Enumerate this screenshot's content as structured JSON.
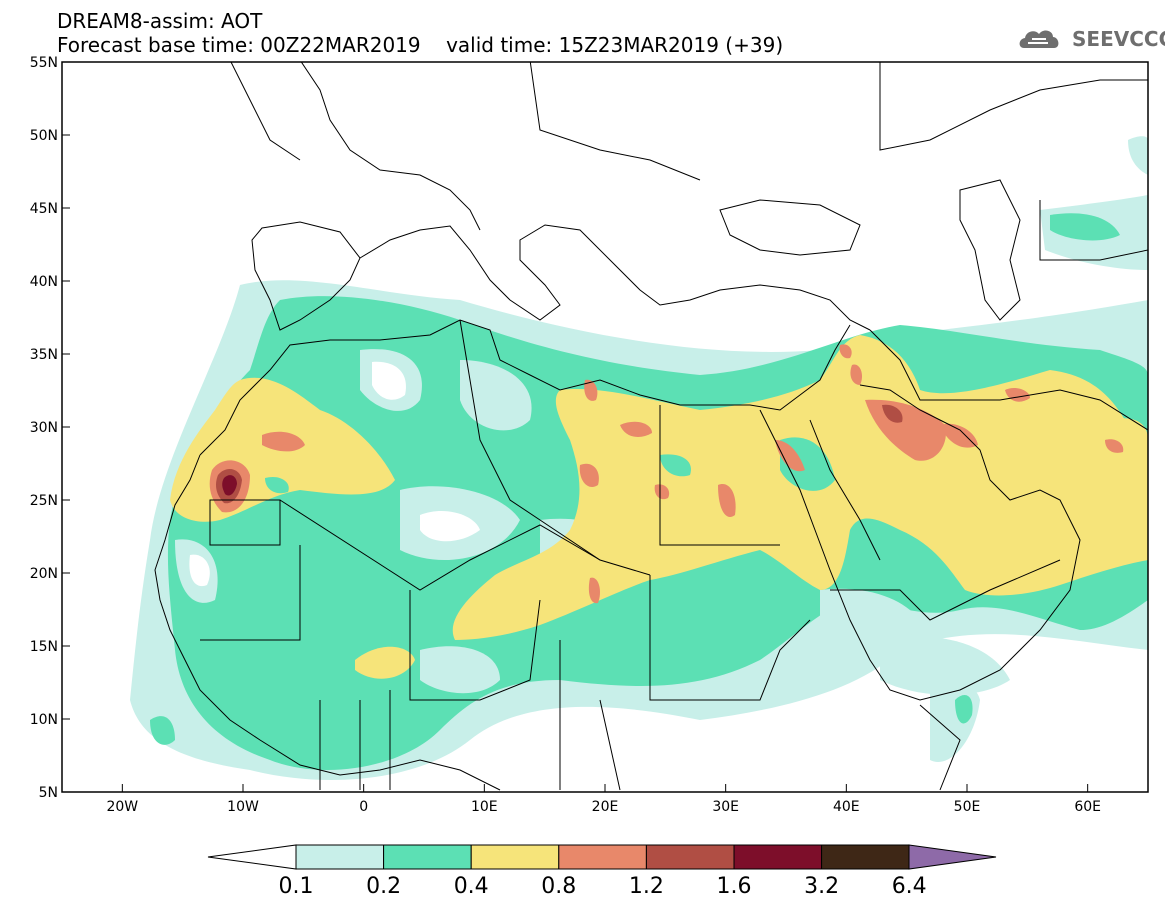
{
  "title": {
    "line1": "DREAM8-assim: AOT",
    "base_time": "Forecast base time: 00Z22MAR2019",
    "valid_time": "valid time: 15Z23MAR2019 (+39)"
  },
  "logo": {
    "text": "SEEVCCC",
    "icon": "cloud-icon"
  },
  "map": {
    "lon_range": [
      -25,
      65
    ],
    "lat_range": [
      5,
      55
    ],
    "lat_ticks": [
      "55N",
      "50N",
      "45N",
      "40N",
      "35N",
      "30N",
      "25N",
      "20N",
      "15N",
      "10N",
      "5N"
    ],
    "lon_ticks": [
      "20W",
      "10W",
      "0",
      "10E",
      "20E",
      "30E",
      "40E",
      "50E",
      "60E"
    ]
  },
  "legend": {
    "levels": [
      "0.1",
      "0.2",
      "0.4",
      "0.8",
      "1.2",
      "1.6",
      "3.2",
      "6.4"
    ],
    "colors": {
      "under": "#ffffff",
      "c1": "#c8efe9",
      "c2": "#5ce0b4",
      "c3": "#f6e47a",
      "c4": "#e8886a",
      "c5": "#b04e44",
      "c6": "#7d0e2a",
      "c7": "#3e2716",
      "over": "#8e6aa8"
    }
  }
}
